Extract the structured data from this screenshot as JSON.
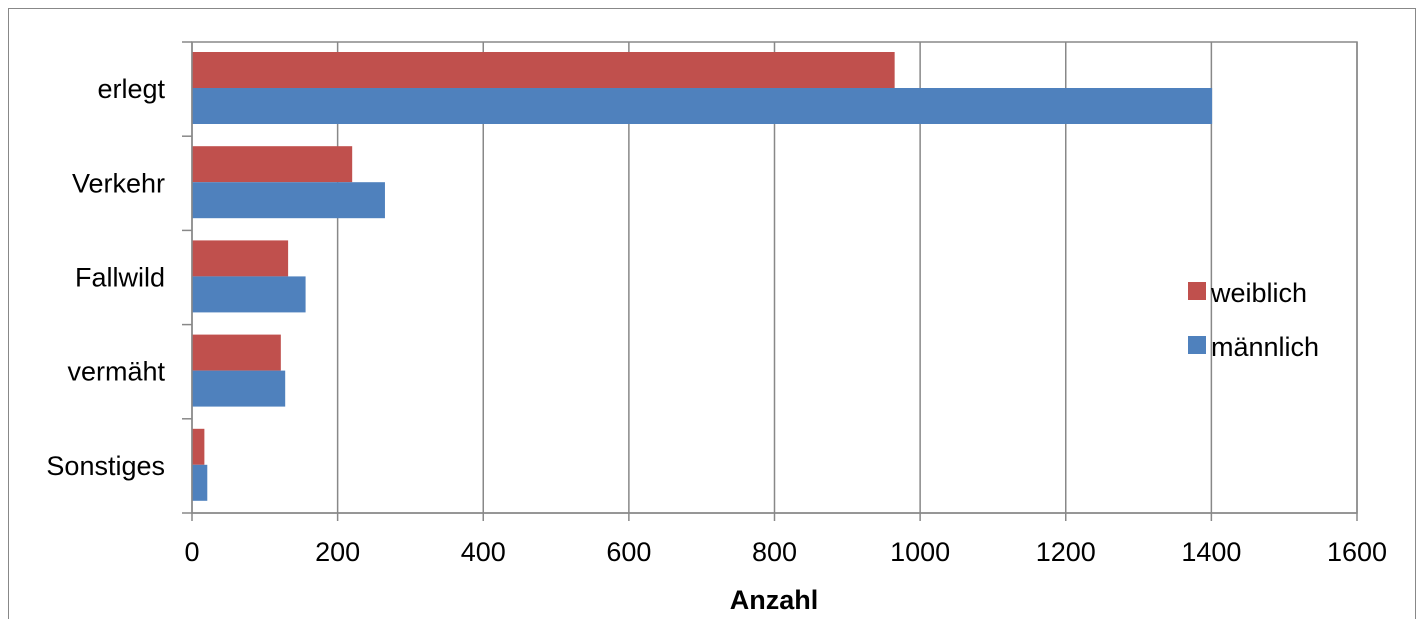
{
  "chart_data": {
    "type": "bar",
    "orientation": "horizontal",
    "categories": [
      "erlegt",
      "Verkehr",
      "Fallwild",
      "vermäht",
      "Sonstiges"
    ],
    "series": [
      {
        "name": "weiblich",
        "color": "#C0504D",
        "values": [
          965,
          220,
          132,
          122,
          17
        ]
      },
      {
        "name": "männlich",
        "color": "#4F81BD",
        "values": [
          1401,
          265,
          156,
          128,
          21
        ]
      }
    ],
    "xlim": [
      0,
      1600
    ],
    "xticks": [
      0,
      200,
      400,
      600,
      800,
      1000,
      1200,
      1400,
      1600
    ],
    "xlabel": "Anzahl",
    "ylabel": "",
    "grid": "vertical",
    "legend_position": "right"
  }
}
